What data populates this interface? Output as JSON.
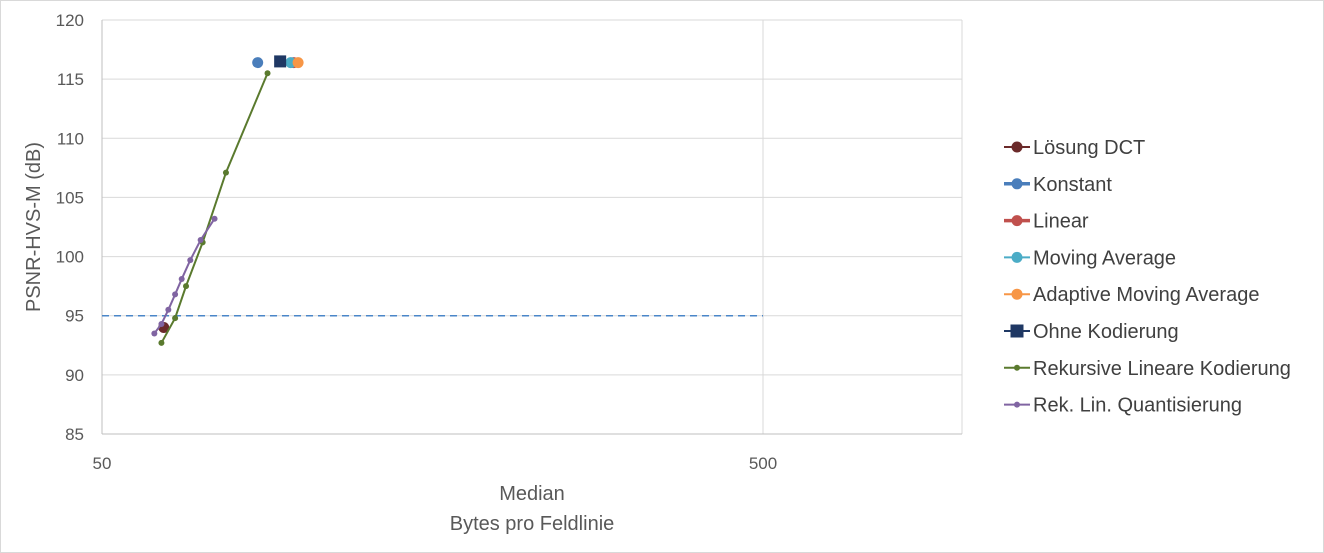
{
  "chart_data": {
    "type": "scatter",
    "title": "",
    "xlabel_line1": "Median",
    "xlabel_line2": "Bytes pro Feldlinie",
    "ylabel": "PSNR-HVS-M (dB)",
    "xscale": "log",
    "xlim": [
      50,
      1000
    ],
    "ylim": [
      85,
      120
    ],
    "xticks": [
      50,
      500
    ],
    "yticks": [
      85,
      90,
      95,
      100,
      105,
      110,
      115,
      120
    ],
    "grid": true,
    "legend_position": "right",
    "reference_line": {
      "y": 95,
      "x_end": 500,
      "color": "#4a86c8",
      "style": "dashed"
    },
    "series": [
      {
        "name": "Lösung DCT",
        "color": "#6b2a2a",
        "marker": "circle",
        "line": false,
        "x": [
          62
        ],
        "y": [
          94.0
        ]
      },
      {
        "name": "Konstant",
        "color": "#4a7ebb",
        "marker": "circle",
        "line": false,
        "x": [
          86
        ],
        "y": [
          116.4
        ]
      },
      {
        "name": "Linear",
        "color": "#c0504d",
        "marker": "circle",
        "line": false,
        "x": [
          97.5
        ],
        "y": [
          116.4
        ]
      },
      {
        "name": "Moving Average",
        "color": "#4bacc6",
        "marker": "circle",
        "line": false,
        "x": [
          96.5
        ],
        "y": [
          116.4
        ]
      },
      {
        "name": "Adaptive Moving Average",
        "color": "#f79646",
        "marker": "circle",
        "line": false,
        "x": [
          99
        ],
        "y": [
          116.4
        ]
      },
      {
        "name": "Ohne Kodierung",
        "color": "#1f3864",
        "marker": "square",
        "line": false,
        "x": [
          93
        ],
        "y": [
          116.5
        ]
      },
      {
        "name": "Rekursive Lineare Kodierung",
        "color": "#5a7a2e",
        "marker": "small-circle",
        "line": true,
        "x": [
          61.5,
          64.5,
          67,
          71,
          77,
          89
        ],
        "y": [
          92.7,
          94.8,
          97.5,
          101.2,
          107.1,
          115.5
        ]
      },
      {
        "name": "Rek. Lin. Quantisierung",
        "color": "#8064a2",
        "marker": "small-circle",
        "line": true,
        "x": [
          60,
          61.5,
          63,
          64.5,
          66,
          68,
          70.5,
          74
        ],
        "y": [
          93.5,
          94.3,
          95.5,
          96.8,
          98.1,
          99.7,
          101.4,
          103.2
        ]
      }
    ]
  }
}
